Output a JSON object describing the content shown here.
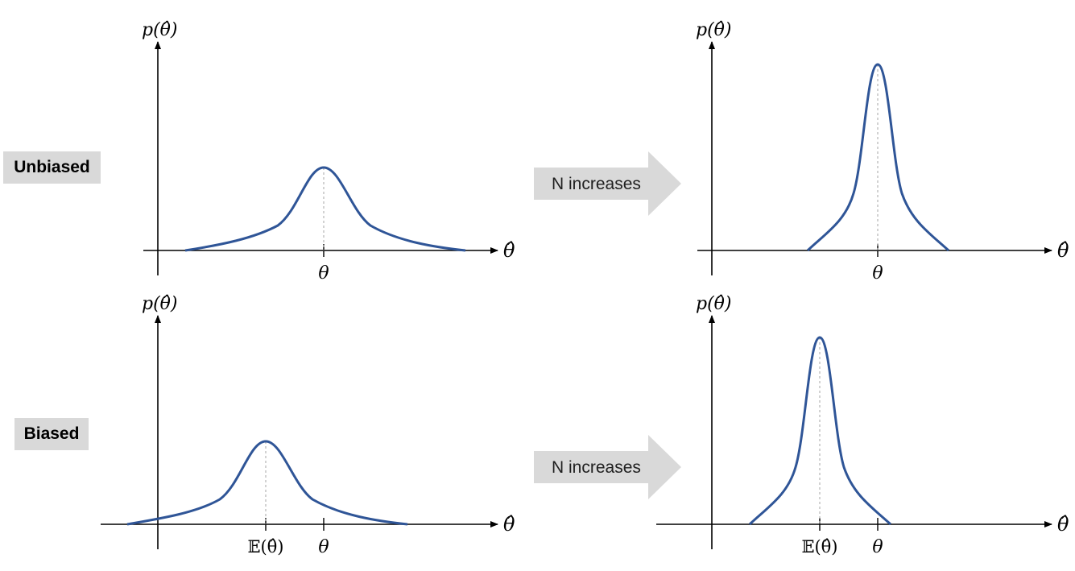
{
  "row_labels": {
    "unbiased": "Unbiased",
    "biased": "Biased"
  },
  "transition_arrows": [
    {
      "label": "N increases"
    },
    {
      "label": "N increases"
    }
  ],
  "axis_labels": {
    "y": "p(θ̂)",
    "x": "θ̂",
    "true_value": "θ",
    "expected_value": "𝔼(θ̂)"
  },
  "colors": {
    "curve": "#2f5597",
    "axis": "#000000",
    "guide_line": "#a6a6a6",
    "label_bg": "#d9d9d9",
    "arrow_fill": "#d9d9d9"
  },
  "panels": [
    {
      "id": "unbiased-small-n",
      "biased": false,
      "spread": "wide"
    },
    {
      "id": "unbiased-large-n",
      "biased": false,
      "spread": "narrow"
    },
    {
      "id": "biased-small-n",
      "biased": true,
      "spread": "wide"
    },
    {
      "id": "biased-large-n",
      "biased": true,
      "spread": "narrow"
    }
  ]
}
